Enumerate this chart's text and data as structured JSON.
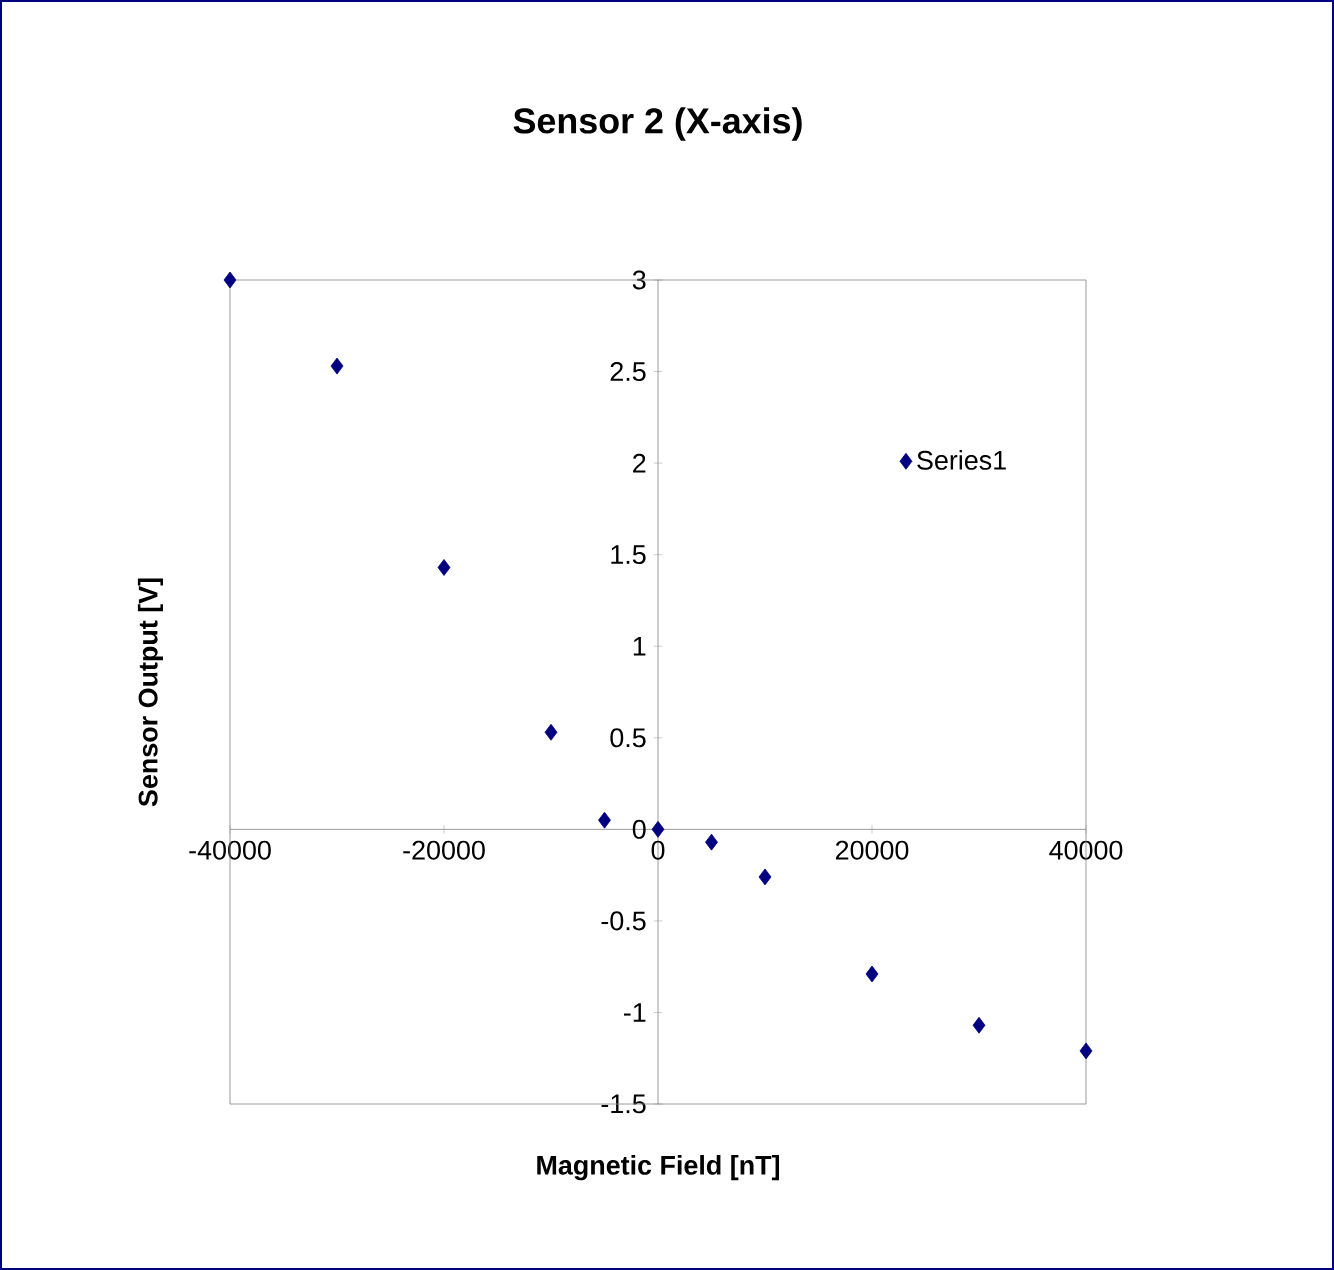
{
  "chart_data": {
    "type": "scatter",
    "title": "Sensor 2 (X-axis)",
    "xlabel": "Magnetic Field [nT]",
    "ylabel": "Sensor Output [V]",
    "x": [
      -40000,
      -30000,
      -20000,
      -10000,
      -5000,
      0,
      5000,
      10000,
      20000,
      30000,
      40000
    ],
    "series": [
      {
        "name": "Series1",
        "color": "#000080",
        "values": [
          3.0,
          2.53,
          1.43,
          0.53,
          0.05,
          0,
          -0.07,
          -0.26,
          -0.79,
          -1.07,
          -1.21
        ]
      }
    ],
    "xlim": [
      -40000,
      40000
    ],
    "ylim": [
      -1.5,
      3
    ],
    "xticks": [
      -40000,
      -20000,
      0,
      20000,
      40000
    ],
    "yticks": [
      -1.5,
      -1,
      -0.5,
      0,
      0.5,
      1,
      1.5,
      2,
      2.5,
      3
    ],
    "marker": "diamond",
    "legend": "right",
    "grid": false
  }
}
